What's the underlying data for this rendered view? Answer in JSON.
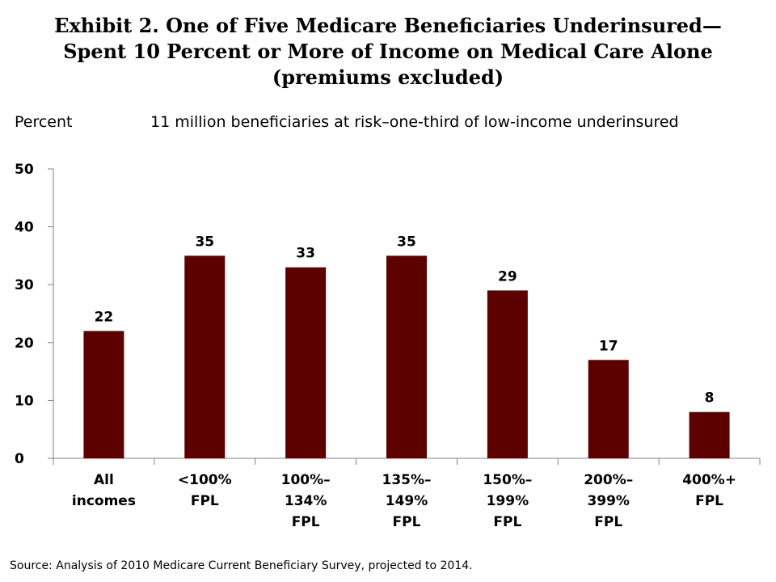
{
  "title_lines": [
    "Exhibit 2. One of Five Medicare Beneficiaries Underinsured—",
    "Spent 10 Percent or More of Income on Medical Care Alone",
    "(premiums excluded)"
  ],
  "source": "Source: Analysis of 2010 Medicare Current Beneficiary Survey, projected to 2014.",
  "colors": {
    "bar": "#5c0000",
    "axis": "#808080"
  },
  "chart_data": {
    "type": "bar",
    "title": "Exhibit 2. One of Five Medicare Beneficiaries Underinsured—Spent 10 Percent or More of Income on Medical Care Alone (premiums excluded)",
    "subtitle": "11 million beneficiaries at risk–one-third of low-income underinsured",
    "ylabel": "Percent",
    "xlabel": "",
    "ylim": [
      0,
      50
    ],
    "yticks": [
      "0",
      "10",
      "20",
      "30",
      "40",
      "50"
    ],
    "categories": [
      [
        "All",
        "incomes"
      ],
      [
        "<100%",
        "FPL"
      ],
      [
        "100%–",
        "134%",
        "FPL"
      ],
      [
        "135%–",
        "149%",
        "FPL"
      ],
      [
        "150%–",
        "199%",
        "FPL"
      ],
      [
        "200%–",
        "399%",
        "FPL"
      ],
      [
        "400%+",
        "FPL"
      ]
    ],
    "values": [
      22,
      35,
      33,
      35,
      29,
      17,
      8
    ],
    "grid": false,
    "legend": "none"
  }
}
